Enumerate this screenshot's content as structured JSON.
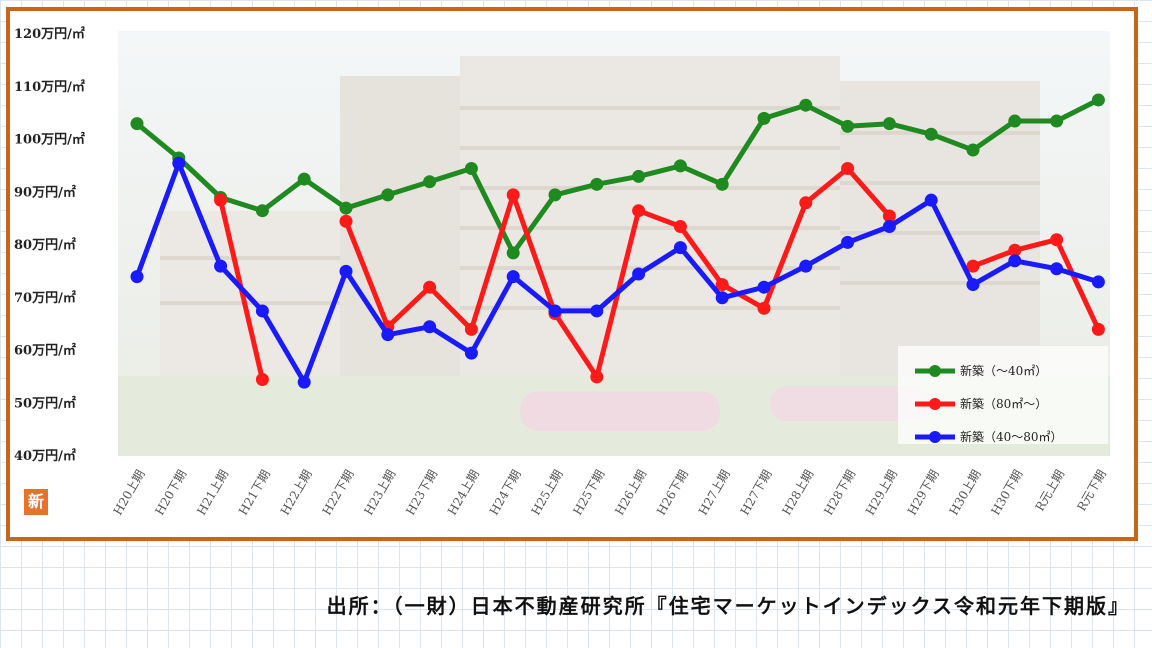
{
  "badge": "新",
  "source": "出所：（一財）日本不動産研究所『住宅マーケットインデックス令和元年下期版』",
  "chart_data": {
    "type": "line",
    "ylim": [
      40,
      120
    ],
    "yticks": [
      {
        "value": 120,
        "label": "120万円/㎡"
      },
      {
        "value": 110,
        "label": "110万円/㎡"
      },
      {
        "value": 100,
        "label": "100万円/㎡"
      },
      {
        "value": 90,
        "label": "90万円/㎡"
      },
      {
        "value": 80,
        "label": "80万円/㎡"
      },
      {
        "value": 70,
        "label": "70万円/㎡"
      },
      {
        "value": 60,
        "label": "60万円/㎡"
      },
      {
        "value": 50,
        "label": "50万円/㎡"
      },
      {
        "value": 40,
        "label": "40万円/㎡"
      }
    ],
    "categories": [
      "H20上期",
      "H20下期",
      "H21上期",
      "H21下期",
      "H22上期",
      "H22下期",
      "H23上期",
      "H23下期",
      "H24上期",
      "H24下期",
      "H25上期",
      "H25下期",
      "H26上期",
      "H26下期",
      "H27上期",
      "H27下期",
      "H28上期",
      "H28下期",
      "H29上期",
      "H29下期",
      "H30上期",
      "H30下期",
      "R元上期",
      "R元下期"
    ],
    "legend_position": "bottom-right",
    "series": [
      {
        "name": "新築（～40㎡）",
        "color": "#1f8a1f",
        "values": [
          103,
          96.5,
          89,
          86.5,
          92.5,
          87,
          89.5,
          92,
          94.5,
          78.5,
          89.5,
          91.5,
          93,
          95,
          91.5,
          104,
          106.5,
          102.5,
          103,
          101,
          98,
          103.5,
          103.5,
          107.5
        ]
      },
      {
        "name": "新築（80㎡～）",
        "color": "#ff1a1a",
        "values": [
          null,
          null,
          88.5,
          54.5,
          null,
          84.5,
          64.5,
          72,
          64,
          89.5,
          67,
          55,
          86.5,
          83.5,
          72.5,
          68,
          88,
          94.5,
          85.5,
          null,
          76,
          79,
          81,
          64
        ]
      },
      {
        "name": "新築（40～80㎡）",
        "color": "#1a1aff",
        "values": [
          74,
          95.5,
          76,
          67.5,
          54,
          75,
          63,
          64.5,
          59.5,
          74,
          67.5,
          67.5,
          74.5,
          79.5,
          70,
          72,
          76,
          80.5,
          83.5,
          88.5,
          72.5,
          77,
          75.5,
          73
        ]
      }
    ]
  }
}
